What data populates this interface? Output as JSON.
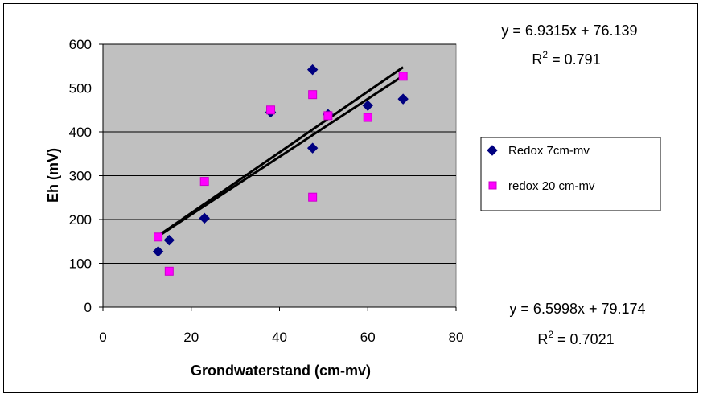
{
  "chart_data": {
    "type": "scatter",
    "xlabel": "Grondwaterstand (cm-mv)",
    "ylabel": "Eh (mV)",
    "xlim": [
      0,
      80
    ],
    "ylim": [
      0,
      600
    ],
    "x_ticks": [
      "0",
      "20",
      "40",
      "60",
      "80"
    ],
    "y_ticks": [
      "0",
      "100",
      "200",
      "300",
      "400",
      "500",
      "600"
    ],
    "plot_background": "#c0c0c0",
    "grid": "horizontal",
    "legend_position": "right",
    "series": [
      {
        "name": "Redox 7cm-mv",
        "color": "#000080",
        "marker": "diamond",
        "x": [
          12.5,
          15,
          23,
          38,
          47.5,
          47.5,
          51,
          60,
          68
        ],
        "y": [
          127,
          153,
          203,
          445,
          542,
          363,
          440,
          460,
          475
        ]
      },
      {
        "name": "redox 20 cm-mv",
        "color": "#ff00ff",
        "marker": "square",
        "x": [
          12.5,
          15,
          23,
          38,
          47.5,
          47.5,
          51,
          60,
          68
        ],
        "y": [
          160,
          82,
          287,
          450,
          485,
          251,
          437,
          433,
          527
        ]
      }
    ],
    "trendlines": [
      {
        "slope": 6.9315,
        "intercept": 76.139,
        "equation": "y = 6.9315x + 76.139",
        "r2_prefix": "R",
        "r2_value": " = 0.791",
        "x_range": [
          12.5,
          68
        ],
        "color": "#000000"
      },
      {
        "slope": 6.5998,
        "intercept": 79.174,
        "equation": "y = 6.5998x + 79.174",
        "r2_prefix": "R",
        "r2_value": " = 0.7021",
        "x_range": [
          12.5,
          68
        ],
        "color": "#000000"
      }
    ]
  }
}
